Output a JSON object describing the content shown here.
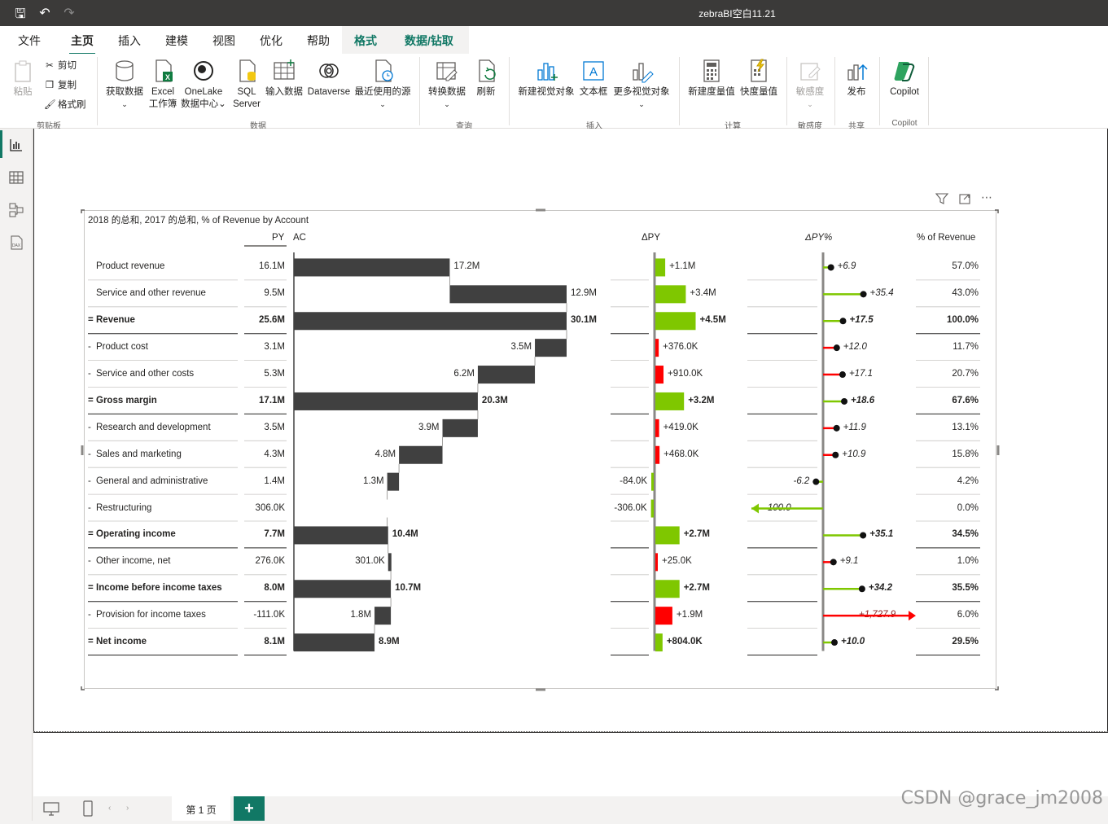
{
  "window": {
    "title": "zebraBI空白11.21"
  },
  "tabs": [
    "文件",
    "主页",
    "插入",
    "建模",
    "视图",
    "优化",
    "帮助",
    "格式",
    "数据/钻取"
  ],
  "ribbon": {
    "clipboard": {
      "paste": "粘贴",
      "cut": "剪切",
      "copy": "复制",
      "format_painter": "格式刷",
      "group": "剪贴板"
    },
    "data": {
      "get_data": "获取数据",
      "excel_1": "Excel",
      "excel_2": "工作簿",
      "onelake_1": "OneLake",
      "onelake_2": "数据中心",
      "sql_1": "SQL",
      "sql_2": "Server",
      "enter_data": "输入数据",
      "dataverse": "Dataverse",
      "recent": "最近使用的源",
      "group": "数据"
    },
    "queries": {
      "transform": "转换数据",
      "refresh": "刷新",
      "group": "查询"
    },
    "insert": {
      "new_visual": "新建视觉对象",
      "textbox": "文本框",
      "more_visuals": "更多视觉对象",
      "group": "插入"
    },
    "calc": {
      "new_measure": "新建度量值",
      "quick_measure": "快度量值",
      "group": "计算"
    },
    "sensitivity": {
      "label": "敏感度",
      "group": "敏感度"
    },
    "share": {
      "publish": "发布",
      "group": "共享"
    },
    "copilot": {
      "label": "Copilot",
      "group": "Copilot"
    }
  },
  "visual": {
    "title": "2018 的总和, 2017 的总和, % of Revenue by Account",
    "headers": {
      "py": "PY",
      "ac": "AC",
      "dpy": "ΔPY",
      "dpy_pct": "ΔPY%",
      "pct_rev": "% of Revenue"
    }
  },
  "colors": {
    "accent": "#117865",
    "bar": "#404040",
    "positive": "#7fc700",
    "negative": "#ff0000"
  },
  "chart_data": {
    "type": "table",
    "rows": [
      {
        "prefix": "",
        "label": "Product revenue",
        "bold": false,
        "py": "16.1M",
        "ac": "17.2M",
        "dpy": "+1.1M",
        "dpy_pct": "+6.9",
        "pct": "57.0%",
        "wf_start": 0,
        "wf_end": 17.2,
        "dpy_val": 1.1,
        "dpy_pct_val": 6.9,
        "sign": 1
      },
      {
        "prefix": "",
        "label": "Service and other revenue",
        "bold": false,
        "py": "9.5M",
        "ac": "12.9M",
        "dpy": "+3.4M",
        "dpy_pct": "+35.4",
        "pct": "43.0%",
        "wf_start": 17.2,
        "wf_end": 30.1,
        "dpy_val": 3.4,
        "dpy_pct_val": 35.4,
        "sign": 1
      },
      {
        "prefix": "=",
        "label": "Revenue",
        "bold": true,
        "py": "25.6M",
        "ac": "30.1M",
        "dpy": "+4.5M",
        "dpy_pct": "+17.5",
        "pct": "100.0%",
        "wf_start": 0,
        "wf_end": 30.1,
        "dpy_val": 4.5,
        "dpy_pct_val": 17.5,
        "sign": 1
      },
      {
        "prefix": "-",
        "label": "Product cost",
        "bold": false,
        "py": "3.1M",
        "ac": "3.5M",
        "dpy": "+376.0K",
        "dpy_pct": "+12.0",
        "pct": "11.7%",
        "wf_start": 30.1,
        "wf_end": 26.6,
        "dpy_val": 0.376,
        "dpy_pct_val": 12.0,
        "sign": -1
      },
      {
        "prefix": "-",
        "label": "Service and other costs",
        "bold": false,
        "py": "5.3M",
        "ac": "6.2M",
        "dpy": "+910.0K",
        "dpy_pct": "+17.1",
        "pct": "20.7%",
        "wf_start": 26.6,
        "wf_end": 20.3,
        "dpy_val": 0.91,
        "dpy_pct_val": 17.1,
        "sign": -1
      },
      {
        "prefix": "=",
        "label": "Gross margin",
        "bold": true,
        "py": "17.1M",
        "ac": "20.3M",
        "dpy": "+3.2M",
        "dpy_pct": "+18.6",
        "pct": "67.6%",
        "wf_start": 0,
        "wf_end": 20.3,
        "dpy_val": 3.2,
        "dpy_pct_val": 18.6,
        "sign": 1
      },
      {
        "prefix": "-",
        "label": "Research and development",
        "bold": false,
        "py": "3.5M",
        "ac": "3.9M",
        "dpy": "+419.0K",
        "dpy_pct": "+11.9",
        "pct": "13.1%",
        "wf_start": 20.3,
        "wf_end": 16.4,
        "dpy_val": 0.419,
        "dpy_pct_val": 11.9,
        "sign": -1
      },
      {
        "prefix": "-",
        "label": "Sales and marketing",
        "bold": false,
        "py": "4.3M",
        "ac": "4.8M",
        "dpy": "+468.0K",
        "dpy_pct": "+10.9",
        "pct": "15.8%",
        "wf_start": 16.4,
        "wf_end": 11.6,
        "dpy_val": 0.468,
        "dpy_pct_val": 10.9,
        "sign": -1
      },
      {
        "prefix": "-",
        "label": "General and administrative",
        "bold": false,
        "py": "1.4M",
        "ac": "1.3M",
        "dpy": "-84.0K",
        "dpy_pct": "-6.2",
        "pct": "4.2%",
        "wf_start": 11.6,
        "wf_end": 10.3,
        "dpy_val": -0.084,
        "dpy_pct_val": -6.2,
        "sign": 1
      },
      {
        "prefix": "-",
        "label": "Restructuring",
        "bold": false,
        "py": "306.0K",
        "ac": "",
        "dpy": "-306.0K",
        "dpy_pct": "-100.0",
        "pct": "0.0%",
        "wf_start": 10.3,
        "wf_end": 10.3,
        "dpy_val": -0.306,
        "dpy_pct_val": -100.0,
        "sign": 1
      },
      {
        "prefix": "=",
        "label": "Operating income",
        "bold": true,
        "py": "7.7M",
        "ac": "10.4M",
        "dpy": "+2.7M",
        "dpy_pct": "+35.1",
        "pct": "34.5%",
        "wf_start": 0,
        "wf_end": 10.4,
        "dpy_val": 2.7,
        "dpy_pct_val": 35.1,
        "sign": 1
      },
      {
        "prefix": "-",
        "label": "Other income, net",
        "bold": false,
        "py": "276.0K",
        "ac": "301.0K",
        "dpy": "+25.0K",
        "dpy_pct": "+9.1",
        "pct": "1.0%",
        "wf_start": 10.4,
        "wf_end": 10.7,
        "dpy_val": 0.025,
        "dpy_pct_val": 9.1,
        "sign": -1
      },
      {
        "prefix": "=",
        "label": "Income before income taxes",
        "bold": true,
        "py": "8.0M",
        "ac": "10.7M",
        "dpy": "+2.7M",
        "dpy_pct": "+34.2",
        "pct": "35.5%",
        "wf_start": 0,
        "wf_end": 10.7,
        "dpy_val": 2.7,
        "dpy_pct_val": 34.2,
        "sign": 1
      },
      {
        "prefix": "-",
        "label": "Provision for income taxes",
        "bold": false,
        "py": "-111.0K",
        "ac": "1.8M",
        "dpy": "+1.9M",
        "dpy_pct": "+1,727.9",
        "pct": "6.0%",
        "wf_start": 10.7,
        "wf_end": 8.9,
        "dpy_val": 1.9,
        "dpy_pct_val": 1727.9,
        "sign": -1
      },
      {
        "prefix": "=",
        "label": "Net income",
        "bold": true,
        "py": "8.1M",
        "ac": "8.9M",
        "dpy": "+804.0K",
        "dpy_pct": "+10.0",
        "pct": "29.5%",
        "wf_start": 0,
        "wf_end": 8.9,
        "dpy_val": 0.804,
        "dpy_pct_val": 10.0,
        "sign": 1
      }
    ]
  },
  "status": {
    "page_tab": "第 1 页",
    "add_page": "+"
  },
  "watermark": "CSDN @grace_jm2008"
}
